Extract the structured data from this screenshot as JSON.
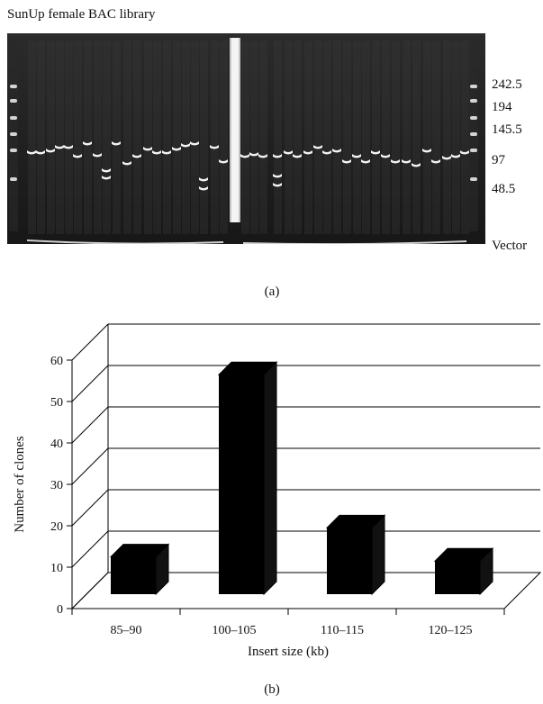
{
  "panel_a": {
    "title": "SunUp female BAC library",
    "size_labels": [
      "242.5",
      "194",
      "145.5",
      "97",
      "48.5",
      "Vector"
    ],
    "caption": "(a)"
  },
  "panel_b": {
    "caption": "(b)"
  },
  "chart_data": {
    "type": "bar",
    "categories": [
      "85–90",
      "100–105",
      "110–115",
      "120–125"
    ],
    "values": [
      9,
      53,
      16,
      8
    ],
    "title": "",
    "xlabel": "Insert size (kb)",
    "ylabel": "Number of clones",
    "ylim": [
      0,
      60
    ],
    "yticks": [
      0,
      10,
      20,
      30,
      40,
      50,
      60
    ],
    "grid": true,
    "style": "3d"
  },
  "colors": {
    "bar": "#000000",
    "gel_background": "#1f1f1f",
    "gel_band": "#f2f2f2"
  }
}
